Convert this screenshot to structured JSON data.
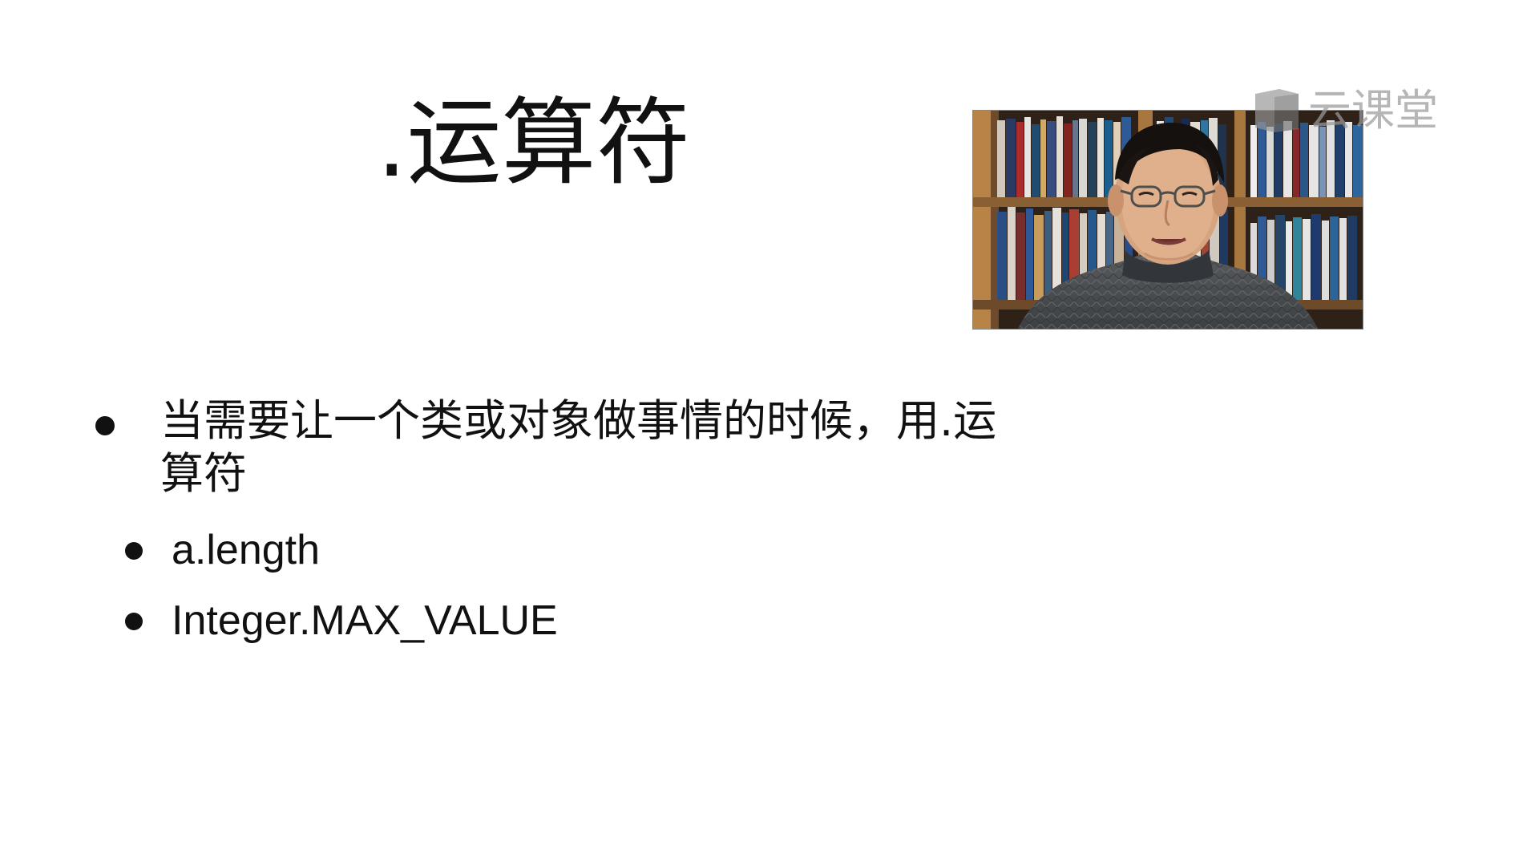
{
  "slide": {
    "title": ".运算符",
    "bullets": [
      {
        "text": "当需要让一个类或对象做事情的时候，用.运算符"
      },
      {
        "text": "a.length"
      },
      {
        "text": "Integer.MAX_VALUE"
      }
    ]
  },
  "video_overlay": {
    "icon": "presenter-video-icon"
  },
  "watermark": {
    "text": "云课堂",
    "icon": "cloud-class-logo-icon"
  },
  "colors": {
    "background": "#ffffff",
    "text": "#111111",
    "watermark": "#9a9a9a"
  }
}
